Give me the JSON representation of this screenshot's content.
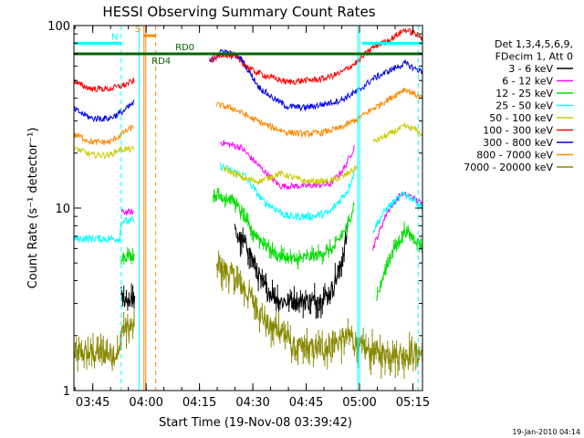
{
  "chart_data": {
    "type": "line",
    "title": "HESSI Observing Summary Count Rates",
    "xlabel": "Start Time (19-Nov-08 03:39:42)",
    "ylabel": "Count Rate (s⁻¹ detector⁻¹)",
    "yscale": "log",
    "ylim": [
      1,
      100
    ],
    "xlim": [
      0,
      98
    ],
    "x_unit": "minutes after 03:39:42",
    "x_ticks": [
      {
        "x": 5.3,
        "label": "03:45"
      },
      {
        "x": 20.3,
        "label": "04:00"
      },
      {
        "x": 35.3,
        "label": "04:15"
      },
      {
        "x": 50.3,
        "label": "04:30"
      },
      {
        "x": 65.3,
        "label": "04:45"
      },
      {
        "x": 80.3,
        "label": "05:00"
      },
      {
        "x": 95.3,
        "label": "05:15"
      }
    ],
    "y_ticks": [
      {
        "y": 1,
        "label": "1"
      },
      {
        "y": 10,
        "label": "10"
      },
      {
        "y": 100,
        "label": "100"
      }
    ],
    "legend": {
      "placement": "right",
      "header": [
        "Det 1,3,4,5,6,9,",
        "FDecim 1, Att 0"
      ],
      "entries": [
        {
          "label": "3 - 6 keV",
          "color": "#000000"
        },
        {
          "label": "6 - 12 keV",
          "color": "#ff00ff"
        },
        {
          "label": "12 - 25 keV",
          "color": "#00dd00"
        },
        {
          "label": "25 - 50 keV",
          "color": "#00ffff"
        },
        {
          "label": "50 - 100 keV",
          "color": "#cccc00"
        },
        {
          "label": "100 - 300 keV",
          "color": "#ff0000"
        },
        {
          "label": "300 - 800 keV",
          "color": "#0000ee"
        },
        {
          "label": "800 - 7000 keV",
          "color": "#ff8800"
        },
        {
          "label": "7000 - 20000 keV",
          "color": "#888800"
        }
      ]
    },
    "series": [
      {
        "name": "3 - 6 keV",
        "color": "#000000",
        "noise": 0.12,
        "x": [
          0,
          13,
          13.2,
          17.2,
          18.3,
          40,
          45,
          49,
          51,
          53,
          58,
          63,
          68,
          72,
          75,
          77,
          80,
          80.2,
          98
        ],
        "y": [
          null,
          null,
          3.2,
          3.2,
          null,
          null,
          7.5,
          6,
          4.8,
          3.8,
          3.1,
          3.1,
          3.1,
          3.4,
          4.8,
          7.5,
          null,
          null,
          null
        ]
      },
      {
        "name": "6 - 12 keV",
        "color": "#ff00ff",
        "noise": 0.04,
        "x": [
          0,
          1,
          6,
          10,
          13,
          13.2,
          17,
          18.3,
          35,
          41,
          47,
          52,
          58,
          65,
          72,
          76,
          79,
          80,
          80.2,
          84,
          88,
          92,
          95,
          98
        ],
        "y": [
          null,
          null,
          null,
          null,
          null,
          9.5,
          9.5,
          null,
          null,
          23,
          21.5,
          17,
          13.2,
          13.2,
          13.5,
          16.5,
          22,
          null,
          null,
          6,
          9.5,
          12,
          11.5,
          10.5
        ]
      },
      {
        "name": "12 - 25 keV",
        "color": "#00dd00",
        "noise": 0.07,
        "x": [
          0,
          13,
          13.2,
          17,
          18.3,
          35,
          39,
          45,
          50,
          57,
          62,
          68,
          73,
          77,
          79,
          80,
          80.2,
          85,
          89,
          93,
          96,
          98
        ],
        "y": [
          null,
          null,
          5.5,
          5.5,
          null,
          null,
          12,
          11,
          7.5,
          5.5,
          5.2,
          5.5,
          6,
          8,
          11,
          null,
          null,
          3.2,
          5.5,
          7.5,
          6.8,
          6
        ]
      },
      {
        "name": "25 - 50 keV",
        "color": "#00ffff",
        "noise": 0.05,
        "x": [
          0,
          0.5,
          4,
          8,
          11,
          13,
          13.2,
          17,
          18.3,
          35,
          41,
          48,
          53,
          60,
          67,
          72,
          77,
          79,
          80,
          80.2,
          84,
          88,
          93,
          96,
          98
        ],
        "y": [
          6.8,
          6.8,
          6.8,
          6.8,
          6.8,
          6.8,
          8.5,
          8.5,
          null,
          null,
          17,
          15,
          11,
          9,
          9,
          9.5,
          12.5,
          16,
          null,
          null,
          7.5,
          10,
          12,
          11,
          10
        ]
      },
      {
        "name": "50 - 100 keV",
        "color": "#cccc00",
        "noise": 0.04,
        "x": [
          0,
          1,
          5,
          10,
          13,
          14,
          17,
          18.3,
          35,
          42,
          48,
          52,
          58,
          65,
          72,
          76,
          80,
          80.2,
          84,
          88,
          93,
          96,
          98
        ],
        "y": [
          21,
          21,
          19.5,
          19.5,
          21,
          21,
          21,
          null,
          null,
          16.5,
          14.5,
          14,
          15.5,
          14,
          14,
          15,
          17,
          null,
          23,
          25,
          28,
          27,
          25
        ]
      },
      {
        "name": "100 - 300 keV",
        "color": "#ff0000",
        "noise": 0.04,
        "x": [
          0,
          1,
          5,
          10,
          14,
          17,
          18.3,
          35,
          38,
          42,
          46,
          50,
          54,
          60,
          65,
          70,
          75,
          80,
          84,
          89,
          93,
          96,
          98
        ],
        "y": [
          50,
          48,
          45,
          45,
          47,
          50,
          null,
          null,
          64,
          70,
          66,
          57,
          53,
          49,
          50,
          51,
          55,
          64,
          76,
          84,
          95,
          90,
          85
        ]
      },
      {
        "name": "300 - 800 keV",
        "color": "#0000ee",
        "noise": 0.04,
        "x": [
          0,
          1,
          5,
          10,
          14,
          17,
          18.3,
          35,
          38,
          42,
          47,
          52,
          56,
          60,
          65,
          70,
          75,
          80,
          84,
          89,
          93,
          96,
          98
        ],
        "y": [
          35,
          34,
          31,
          31,
          34,
          38,
          null,
          null,
          63,
          73,
          66,
          46,
          40,
          36,
          35.5,
          37,
          39,
          44,
          51,
          57,
          62,
          58,
          56
        ]
      },
      {
        "name": "800 - 7000 keV",
        "color": "#ff8800",
        "noise": 0.04,
        "x": [
          0,
          1,
          5,
          10,
          13,
          14,
          17,
          18.3,
          35,
          40,
          45,
          50,
          55,
          60,
          65,
          70,
          75,
          80,
          84,
          89,
          93,
          96,
          98
        ],
        "y": [
          25,
          25,
          23,
          23,
          25,
          26,
          28,
          null,
          null,
          37,
          35,
          31,
          28,
          26,
          25.5,
          26,
          27.5,
          31,
          35,
          40,
          45,
          42,
          40
        ]
      },
      {
        "name": "7000 - 20000 keV",
        "color": "#888800",
        "noise": 0.15,
        "x": [
          0,
          1,
          5,
          10,
          13,
          13.2,
          17,
          18.3,
          35,
          40,
          45,
          50,
          55,
          58,
          62,
          70,
          78,
          80,
          80.2,
          85,
          90,
          95,
          98
        ],
        "y": [
          1.6,
          1.6,
          1.6,
          1.6,
          1.6,
          2.2,
          2.2,
          null,
          null,
          5,
          4.2,
          3.2,
          2.2,
          2.2,
          1.7,
          1.7,
          2,
          1.7,
          1.7,
          1.6,
          1.6,
          1.6,
          1.6
        ]
      }
    ],
    "annotations": {
      "bars": [
        {
          "label": "N",
          "color": "#00ffff",
          "x_start": 0,
          "x_end": 13.5,
          "y": 80
        },
        {
          "label": "",
          "color": "#00ffff",
          "x_start": 81,
          "x_end": 98,
          "y": 80
        },
        {
          "label": "S",
          "color": "#ff8800",
          "x_start": 19.5,
          "x_end": 23,
          "y": 88
        },
        {
          "label": "RD4",
          "color": "#006600",
          "x_start": 0,
          "x_end": 28,
          "y": 70
        },
        {
          "label": "RD0",
          "color": "#006600",
          "x_start": 28,
          "x_end": 98,
          "y": 70
        }
      ],
      "vertical_lines": [
        {
          "x": 13.3,
          "color": "#00ffff",
          "style": "dashed"
        },
        {
          "x": 18.3,
          "color": "#00ffff",
          "style": "solid"
        },
        {
          "x": 19.7,
          "color": "#ff8800",
          "style": "solid"
        },
        {
          "x": 20.2,
          "color": "#ff8800",
          "style": "solid"
        },
        {
          "x": 23.0,
          "color": "#ff8800",
          "style": "dashed"
        },
        {
          "x": 79.8,
          "color": "#00ffff",
          "style": "solid"
        },
        {
          "x": 80.3,
          "color": "#00ffff",
          "style": "solid"
        },
        {
          "x": 96.8,
          "color": "#00ffff",
          "style": "dashed"
        }
      ]
    },
    "grid": false,
    "timestamp": "19-Jan-2010 04:14"
  }
}
